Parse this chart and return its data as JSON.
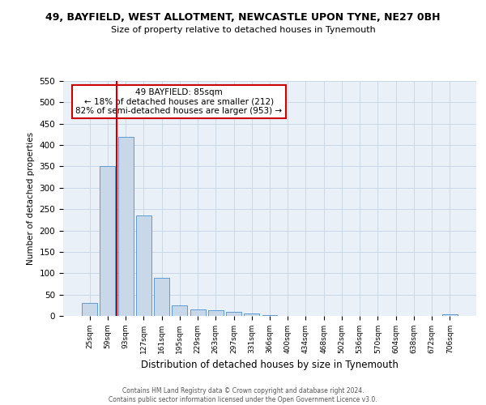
{
  "title": "49, BAYFIELD, WEST ALLOTMENT, NEWCASTLE UPON TYNE, NE27 0BH",
  "subtitle": "Size of property relative to detached houses in Tynemouth",
  "xlabel": "Distribution of detached houses by size in Tynemouth",
  "ylabel": "Number of detached properties",
  "bar_labels": [
    "25sqm",
    "59sqm",
    "93sqm",
    "127sqm",
    "161sqm",
    "195sqm",
    "229sqm",
    "263sqm",
    "297sqm",
    "331sqm",
    "366sqm",
    "400sqm",
    "434sqm",
    "468sqm",
    "502sqm",
    "536sqm",
    "570sqm",
    "604sqm",
    "638sqm",
    "672sqm",
    "706sqm"
  ],
  "bar_values": [
    30,
    350,
    420,
    235,
    90,
    25,
    16,
    13,
    10,
    6,
    1,
    0,
    0,
    0,
    0,
    0,
    0,
    0,
    0,
    0,
    3
  ],
  "bar_color": "#c8d8e8",
  "bar_edge_color": "#5b9bd5",
  "vline_color": "#cc0000",
  "annotation_text": "49 BAYFIELD: 85sqm\n← 18% of detached houses are smaller (212)\n82% of semi-detached houses are larger (953) →",
  "annotation_box_color": "#ffffff",
  "annotation_box_edge": "#cc0000",
  "ylim": [
    0,
    550
  ],
  "yticks": [
    0,
    50,
    100,
    150,
    200,
    250,
    300,
    350,
    400,
    450,
    500,
    550
  ],
  "bg_color": "#ffffff",
  "ax_bg_color": "#eaf0f8",
  "grid_color": "#c8d4e4",
  "footer_line1": "Contains HM Land Registry data © Crown copyright and database right 2024.",
  "footer_line2": "Contains public sector information licensed under the Open Government Licence v3.0."
}
